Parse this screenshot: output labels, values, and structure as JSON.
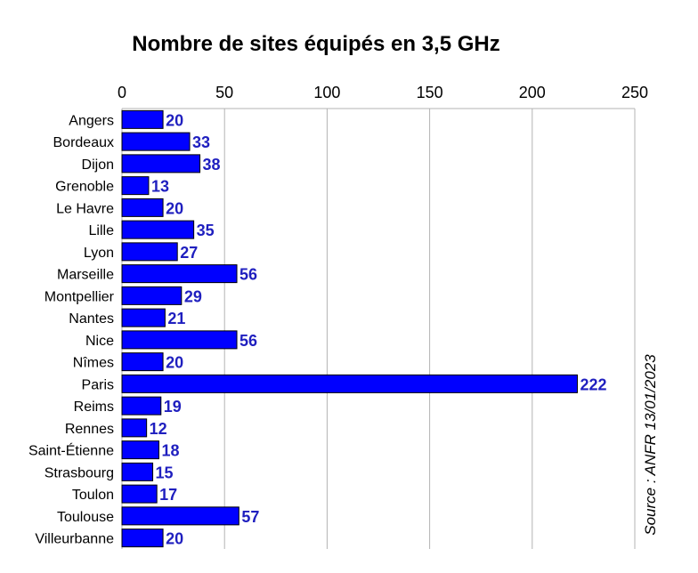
{
  "chart_data": {
    "type": "bar",
    "orientation": "horizontal",
    "title": "Nombre de sites équipés en 3,5 GHz",
    "source": "Source : ANFR 13/01/2023",
    "categories": [
      "Angers",
      "Bordeaux",
      "Dijon",
      "Grenoble",
      "Le Havre",
      "Lille",
      "Lyon",
      "Marseille",
      "Montpellier",
      "Nantes",
      "Nice",
      "Nîmes",
      "Paris",
      "Reims",
      "Rennes",
      "Saint-Étienne",
      "Strasbourg",
      "Toulon",
      "Toulouse",
      "Villeurbanne"
    ],
    "values": [
      20,
      33,
      38,
      13,
      20,
      35,
      27,
      56,
      29,
      21,
      56,
      20,
      222,
      19,
      12,
      18,
      15,
      17,
      57,
      20
    ],
    "xlim": [
      0,
      250
    ],
    "xticks": [
      0,
      50,
      100,
      150,
      200,
      250
    ],
    "xaxis_position": "top",
    "grid": "vertical",
    "legend": "none",
    "bar_color": "#0000ff",
    "label_color": "#1f1fbf"
  }
}
